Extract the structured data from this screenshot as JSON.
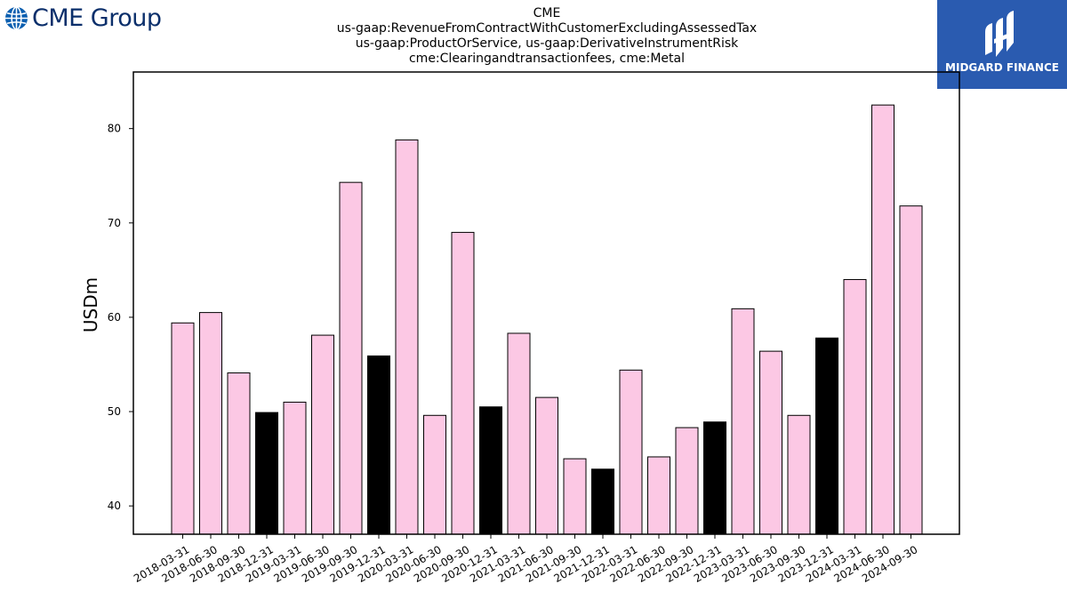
{
  "header": {
    "logo_text": "CME Group",
    "badge_text": "MIDGARD FINANCE"
  },
  "colors": {
    "pink_bar": "#fcc8e4",
    "black_bar": "#000000",
    "cme_blue": "#0b2f6b",
    "midgard_blue": "#2a5bb0"
  },
  "icons": {
    "cme_logo": "globe-icon",
    "midgard_logo": "midgard-mark-icon"
  },
  "chart_data": {
    "type": "bar",
    "title_lines": [
      "CME",
      "us-gaap:RevenueFromContractWithCustomerExcludingAssessedTax",
      "us-gaap:ProductOrService, us-gaap:DerivativeInstrumentRisk",
      "cme:Clearingandtransactionfees, cme:Metal"
    ],
    "xlabel": "",
    "ylabel": "USDm",
    "ylim": [
      37,
      86
    ],
    "yticks": [
      40,
      50,
      60,
      70,
      80
    ],
    "grid": false,
    "legend": "none",
    "categories": [
      "2018-03-31",
      "2018-06-30",
      "2018-09-30",
      "2018-12-31",
      "2019-03-31",
      "2019-06-30",
      "2019-09-30",
      "2019-12-31",
      "2020-03-31",
      "2020-06-30",
      "2020-09-30",
      "2020-12-31",
      "2021-03-31",
      "2021-06-30",
      "2021-09-30",
      "2021-12-31",
      "2022-03-31",
      "2022-06-30",
      "2022-09-30",
      "2022-12-31",
      "2023-03-31",
      "2023-06-30",
      "2023-09-30",
      "2023-12-31",
      "2024-03-31",
      "2024-06-30",
      "2024-09-30"
    ],
    "values": [
      59.4,
      60.5,
      54.1,
      49.9,
      51.0,
      58.1,
      74.3,
      55.9,
      78.8,
      49.6,
      69.0,
      50.5,
      58.3,
      51.5,
      45.0,
      43.9,
      54.4,
      45.2,
      48.3,
      48.9,
      60.9,
      56.4,
      49.6,
      57.8,
      64.0,
      82.5,
      71.8
    ],
    "highlight_quarter": "12-31",
    "bar_colors": [
      "#fcc8e4",
      "#000000"
    ]
  }
}
